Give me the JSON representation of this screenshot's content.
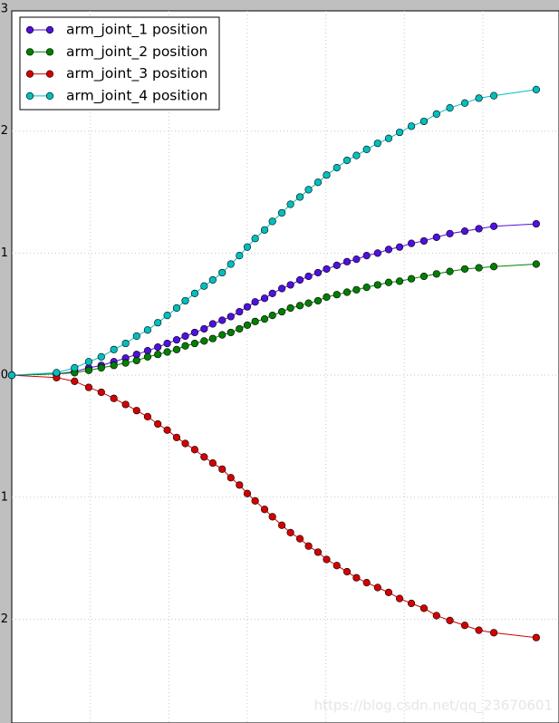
{
  "chart_data": {
    "type": "line",
    "x": [
      0,
      0.57,
      0.8,
      0.98,
      1.14,
      1.3,
      1.45,
      1.59,
      1.73,
      1.86,
      1.98,
      2.1,
      2.21,
      2.33,
      2.45,
      2.56,
      2.68,
      2.79,
      2.9,
      3.0,
      3.1,
      3.22,
      3.32,
      3.44,
      3.55,
      3.67,
      3.78,
      3.9,
      4.01,
      4.14,
      4.27,
      4.39,
      4.52,
      4.66,
      4.8,
      4.94,
      5.09,
      5.25,
      5.41,
      5.58,
      5.77,
      5.95,
      6.14,
      6.68
    ],
    "series": [
      {
        "name": "arm_joint_1 position",
        "color": "#5010e0",
        "values": [
          0,
          0.01,
          0.03,
          0.06,
          0.08,
          0.11,
          0.14,
          0.17,
          0.2,
          0.23,
          0.26,
          0.29,
          0.32,
          0.35,
          0.38,
          0.42,
          0.45,
          0.48,
          0.52,
          0.56,
          0.6,
          0.63,
          0.67,
          0.71,
          0.74,
          0.78,
          0.81,
          0.84,
          0.87,
          0.9,
          0.93,
          0.95,
          0.98,
          1.0,
          1.03,
          1.05,
          1.08,
          1.1,
          1.13,
          1.16,
          1.18,
          1.2,
          1.22,
          1.24
        ]
      },
      {
        "name": "arm_joint_2 position",
        "color": "#007f00",
        "values": [
          0,
          0.01,
          0.02,
          0.04,
          0.06,
          0.08,
          0.1,
          0.12,
          0.15,
          0.17,
          0.19,
          0.21,
          0.24,
          0.26,
          0.28,
          0.3,
          0.33,
          0.35,
          0.38,
          0.41,
          0.44,
          0.46,
          0.49,
          0.52,
          0.55,
          0.57,
          0.59,
          0.61,
          0.64,
          0.66,
          0.68,
          0.7,
          0.72,
          0.74,
          0.76,
          0.77,
          0.79,
          0.81,
          0.83,
          0.85,
          0.87,
          0.88,
          0.89,
          0.91
        ]
      },
      {
        "name": "arm_joint_3 position",
        "color": "#d40000",
        "values": [
          0,
          -0.02,
          -0.05,
          -0.1,
          -0.14,
          -0.19,
          -0.24,
          -0.29,
          -0.34,
          -0.4,
          -0.45,
          -0.51,
          -0.56,
          -0.61,
          -0.67,
          -0.72,
          -0.77,
          -0.84,
          -0.9,
          -0.97,
          -1.03,
          -1.1,
          -1.16,
          -1.23,
          -1.29,
          -1.34,
          -1.4,
          -1.45,
          -1.51,
          -1.56,
          -1.61,
          -1.66,
          -1.7,
          -1.74,
          -1.78,
          -1.83,
          -1.87,
          -1.91,
          -1.97,
          -2.01,
          -2.05,
          -2.09,
          -2.11,
          -2.15
        ]
      },
      {
        "name": "arm_joint_4 position",
        "color": "#00bfbf",
        "values": [
          0,
          0.02,
          0.06,
          0.11,
          0.15,
          0.21,
          0.26,
          0.32,
          0.37,
          0.43,
          0.49,
          0.55,
          0.61,
          0.67,
          0.73,
          0.78,
          0.84,
          0.91,
          0.98,
          1.05,
          1.12,
          1.19,
          1.26,
          1.33,
          1.4,
          1.46,
          1.52,
          1.58,
          1.64,
          1.7,
          1.76,
          1.8,
          1.85,
          1.9,
          1.94,
          1.99,
          2.04,
          2.08,
          2.14,
          2.19,
          2.23,
          2.27,
          2.29,
          2.34
        ]
      }
    ],
    "xlim": [
      0,
      6.97
    ],
    "xticks": [
      1,
      2,
      3,
      4,
      5,
      6
    ],
    "ylim": [
      -2.85,
      3
    ],
    "yticks": [
      {
        "value": 3,
        "label": "3"
      },
      {
        "value": 2,
        "label": "2"
      },
      {
        "value": 1,
        "label": "1"
      },
      {
        "value": 0,
        "label": "0"
      },
      {
        "value": -1,
        "label": "1"
      },
      {
        "value": -2,
        "label": "2"
      }
    ],
    "grid": true,
    "legend": "upper left",
    "watermark": "https://blog.csdn.net/qq_23670601"
  }
}
